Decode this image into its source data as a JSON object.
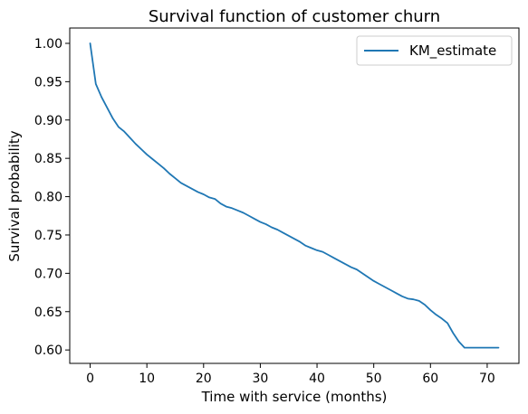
{
  "chart_data": {
    "type": "line",
    "title": "Survival function of customer churn",
    "xlabel": "Time with service (months)",
    "ylabel": "Survival probability",
    "xlim": [
      -3.6,
      75.6
    ],
    "ylim": [
      0.5825,
      1.02
    ],
    "xticks": [
      0,
      10,
      20,
      30,
      40,
      50,
      60,
      70
    ],
    "yticks": [
      0.6,
      0.65,
      0.7,
      0.75,
      0.8,
      0.85,
      0.9,
      0.95,
      1.0
    ],
    "grid": false,
    "legend": "top-right",
    "series": [
      {
        "name": "KM_estimate",
        "color": "#1f77b4",
        "x": [
          0,
          1,
          2,
          3,
          4,
          5,
          6,
          7,
          8,
          9,
          10,
          11,
          12,
          13,
          14,
          15,
          16,
          17,
          18,
          19,
          20,
          21,
          22,
          23,
          24,
          25,
          26,
          27,
          28,
          29,
          30,
          31,
          32,
          33,
          34,
          35,
          36,
          37,
          38,
          39,
          40,
          41,
          42,
          43,
          44,
          45,
          46,
          47,
          48,
          49,
          50,
          51,
          52,
          53,
          54,
          55,
          56,
          57,
          58,
          59,
          60,
          61,
          62,
          63,
          64,
          65,
          66,
          67,
          68,
          69,
          70,
          71,
          72
        ],
        "y": [
          1.0,
          0.947,
          0.93,
          0.916,
          0.902,
          0.891,
          0.885,
          0.877,
          0.869,
          0.862,
          0.855,
          0.849,
          0.843,
          0.837,
          0.83,
          0.824,
          0.818,
          0.814,
          0.81,
          0.806,
          0.803,
          0.799,
          0.797,
          0.791,
          0.787,
          0.785,
          0.782,
          0.779,
          0.775,
          0.771,
          0.767,
          0.764,
          0.76,
          0.757,
          0.753,
          0.749,
          0.745,
          0.741,
          0.736,
          0.733,
          0.73,
          0.728,
          0.724,
          0.72,
          0.716,
          0.712,
          0.708,
          0.705,
          0.7,
          0.695,
          0.69,
          0.686,
          0.682,
          0.678,
          0.674,
          0.67,
          0.667,
          0.666,
          0.664,
          0.659,
          0.652,
          0.646,
          0.641,
          0.635,
          0.622,
          0.611,
          0.603,
          0.603,
          0.603,
          0.603,
          0.603,
          0.603,
          0.603
        ]
      }
    ]
  }
}
